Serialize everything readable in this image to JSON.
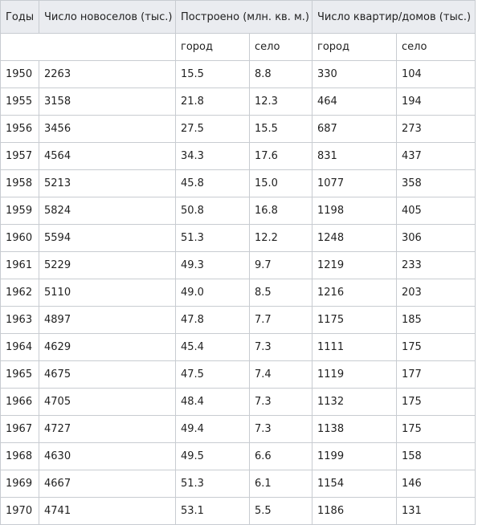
{
  "table": {
    "header": [
      "Годы",
      "Число новоселов (тыс.)",
      "Построено (млн. кв. м.)",
      "Число квартир/домов (тыс.)"
    ],
    "subheader": [
      "город",
      "село",
      "город",
      "село"
    ],
    "rows": [
      [
        "1950",
        "2263",
        "15.5",
        "8.8",
        "330",
        "104"
      ],
      [
        "1955",
        "3158",
        "21.8",
        "12.3",
        "464",
        "194"
      ],
      [
        "1956",
        "3456",
        "27.5",
        "15.5",
        "687",
        "273"
      ],
      [
        "1957",
        "4564",
        "34.3",
        "17.6",
        "831",
        "437"
      ],
      [
        "1958",
        "5213",
        "45.8",
        "15.0",
        "1077",
        "358"
      ],
      [
        "1959",
        "5824",
        "50.8",
        "16.8",
        "1198",
        "405"
      ],
      [
        "1960",
        "5594",
        "51.3",
        "12.2",
        "1248",
        "306"
      ],
      [
        "1961",
        "5229",
        "49.3",
        "9.7",
        "1219",
        "233"
      ],
      [
        "1962",
        "5110",
        "49.0",
        "8.5",
        "1216",
        "203"
      ],
      [
        "1963",
        "4897",
        "47.8",
        "7.7",
        "1175",
        "185"
      ],
      [
        "1964",
        "4629",
        "45.4",
        "7.3",
        "1111",
        "175"
      ],
      [
        "1965",
        "4675",
        "47.5",
        "7.4",
        "1119",
        "177"
      ],
      [
        "1966",
        "4705",
        "48.4",
        "7.3",
        "1132",
        "175"
      ],
      [
        "1967",
        "4727",
        "49.4",
        "7.3",
        "1138",
        "175"
      ],
      [
        "1968",
        "4630",
        "49.5",
        "6.6",
        "1199",
        "158"
      ],
      [
        "1969",
        "4667",
        "51.3",
        "6.1",
        "1154",
        "146"
      ],
      [
        "1970",
        "4741",
        "53.1",
        "5.5",
        "1186",
        "131"
      ]
    ]
  }
}
